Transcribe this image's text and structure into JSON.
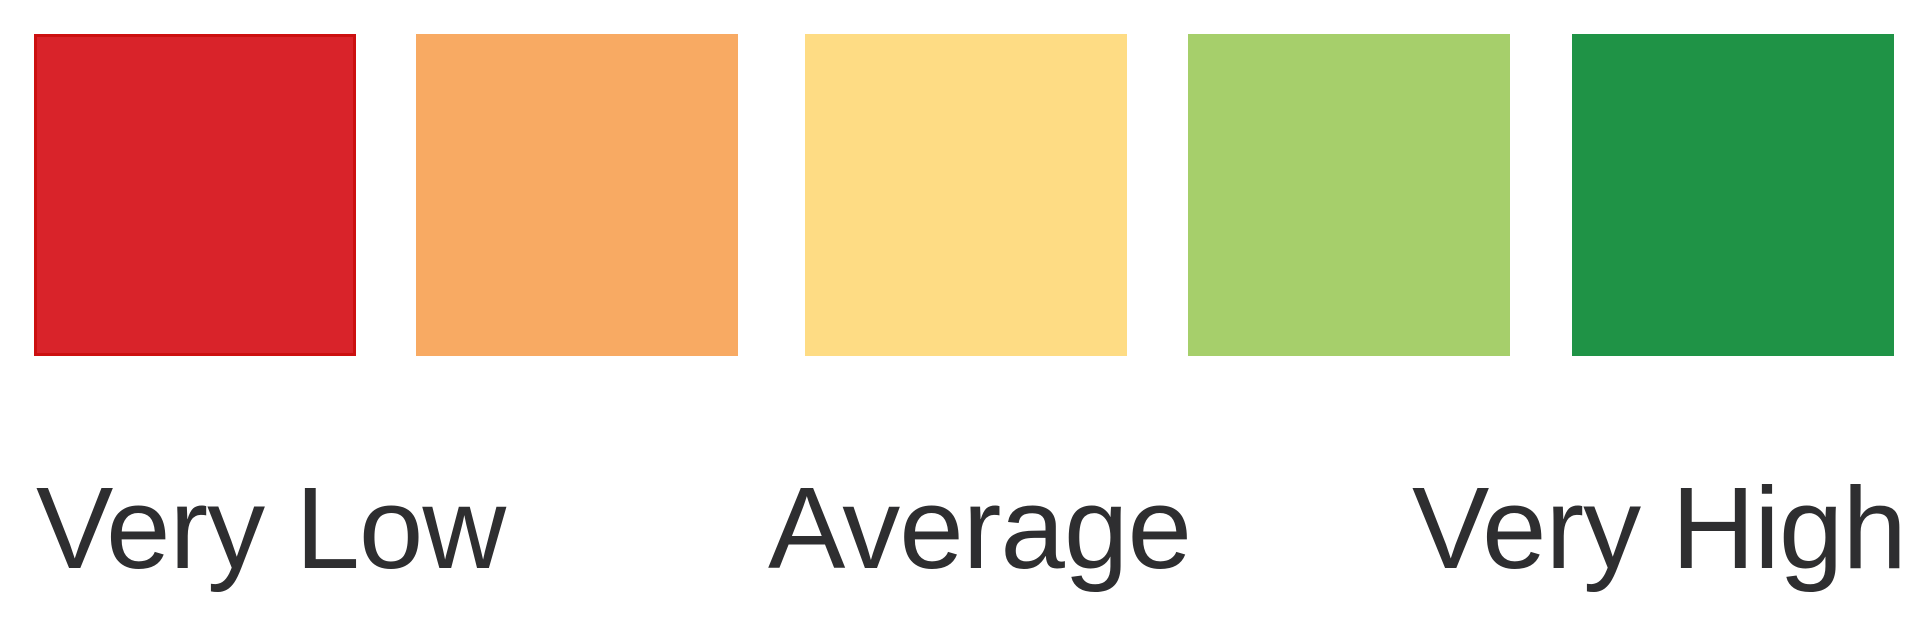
{
  "scale": {
    "swatches": [
      {
        "color": "#d9232a",
        "level": 1
      },
      {
        "color": "#f8aa63",
        "level": 2
      },
      {
        "color": "#fedc84",
        "level": 3
      },
      {
        "color": "#a6cf6b",
        "level": 4
      },
      {
        "color": "#1f9346",
        "level": 5
      }
    ],
    "labels": {
      "low": "Very Low",
      "mid": "Average",
      "high": "Very High"
    }
  }
}
